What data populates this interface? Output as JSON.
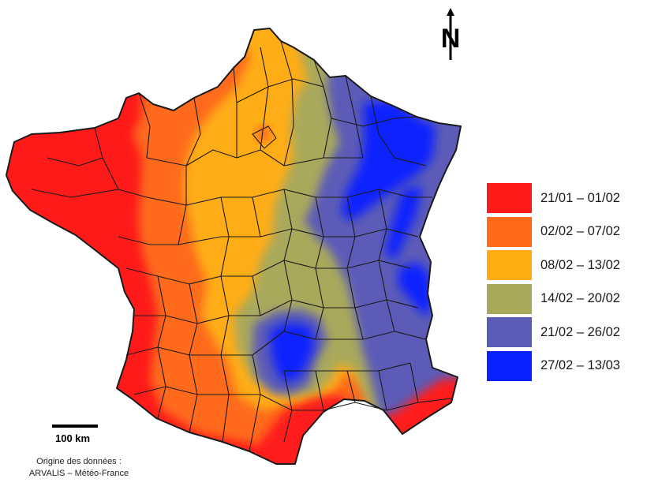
{
  "map": {
    "colors": {
      "class1": "#ff1a1a",
      "class2": "#ff6a1a",
      "class3": "#ffad12",
      "class4": "#a9a95c",
      "class5": "#5b5cb8",
      "class6": "#0a22ff",
      "borders": "#1a1a1a"
    }
  },
  "legend": {
    "items": [
      {
        "label": "21/01 – 01/02",
        "color": "#ff1a1a"
      },
      {
        "label": "02/02 – 07/02",
        "color": "#ff6a1a"
      },
      {
        "label": "08/02 – 13/02",
        "color": "#ffad12"
      },
      {
        "label": "14/02 – 20/02",
        "color": "#a9a95c"
      },
      {
        "label": "21/02 – 26/02",
        "color": "#5b5cb8"
      },
      {
        "label": "27/02 – 13/03",
        "color": "#0a22ff"
      }
    ]
  },
  "scale_bar": {
    "label": "100 km"
  },
  "source": {
    "line1": "Origine des données :",
    "line2": "ARVALIS – Météo-France"
  },
  "north_arrow": {
    "letter": "N",
    "icon": "north-arrow-icon"
  }
}
